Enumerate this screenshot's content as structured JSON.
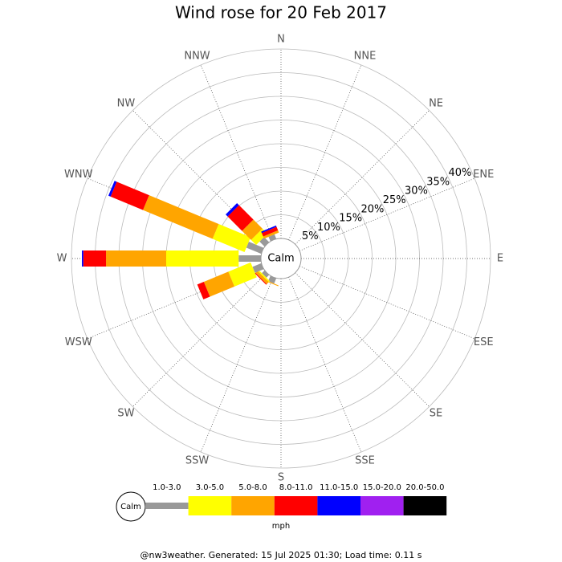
{
  "chart_data": {
    "type": "windrose",
    "title": "Wind rose for 20 Feb 2017",
    "calm_label": "Calm",
    "unit": "mph",
    "footer": "@nw3weather. Generated: 15 Jul 2025 01:30; Load time: 0.11 s",
    "categories": [
      "N",
      "NNE",
      "NE",
      "ENE",
      "E",
      "ESE",
      "SE",
      "SSE",
      "S",
      "SSW",
      "SW",
      "WSW",
      "W",
      "WNW",
      "NW",
      "NNW"
    ],
    "ylim": [
      0,
      40
    ],
    "yticks": [
      {
        "value": 5,
        "label": "5%"
      },
      {
        "value": 10,
        "label": "10%"
      },
      {
        "value": 15,
        "label": "15%"
      },
      {
        "value": 20,
        "label": "20%"
      },
      {
        "value": 25,
        "label": "25%"
      },
      {
        "value": 30,
        "label": "30%"
      },
      {
        "value": 35,
        "label": "35%"
      },
      {
        "value": 40,
        "label": "40%"
      }
    ],
    "series": [
      {
        "name": "1.0-3.0",
        "color": "#999999",
        "values": [
          0,
          0,
          0,
          0,
          0,
          0,
          0,
          0,
          0,
          1.2,
          0.8,
          2.0,
          4.7,
          3.4,
          1.5,
          1.0
        ]
      },
      {
        "name": "3.0-5.0",
        "color": "#ffff00",
        "values": [
          0,
          0,
          0,
          0,
          0,
          0,
          0,
          0,
          0,
          0,
          0.3,
          5.1,
          15.3,
          7.3,
          1.5,
          0
        ]
      },
      {
        "name": "5.0-8.0",
        "color": "#ffa500",
        "values": [
          0,
          0,
          0,
          0,
          0,
          0,
          0,
          0,
          0,
          0.2,
          0.6,
          5.6,
          12.7,
          15.9,
          2.7,
          0.5
        ]
      },
      {
        "name": "8.0-11.0",
        "color": "#ff0000",
        "values": [
          0,
          0,
          0,
          0,
          0,
          0,
          0,
          0,
          0,
          0,
          0.2,
          1.5,
          4.8,
          7.4,
          4.3,
          0.8
        ]
      },
      {
        "name": "11.0-15.0",
        "color": "#0000ff",
        "values": [
          0,
          0,
          0,
          0,
          0,
          0,
          0,
          0,
          0,
          0,
          0,
          0,
          0.3,
          0.5,
          0.6,
          0.3
        ]
      },
      {
        "name": "15.0-20.0",
        "color": "#a020f0",
        "values": [
          0,
          0,
          0,
          0,
          0,
          0,
          0,
          0,
          0,
          0,
          0,
          0,
          0,
          0,
          0,
          0
        ]
      },
      {
        "name": "20.0-50.0",
        "color": "#000000",
        "values": [
          0,
          0,
          0,
          0,
          0,
          0,
          0,
          0,
          0,
          0,
          0,
          0,
          0,
          0,
          0,
          0
        ]
      }
    ]
  }
}
